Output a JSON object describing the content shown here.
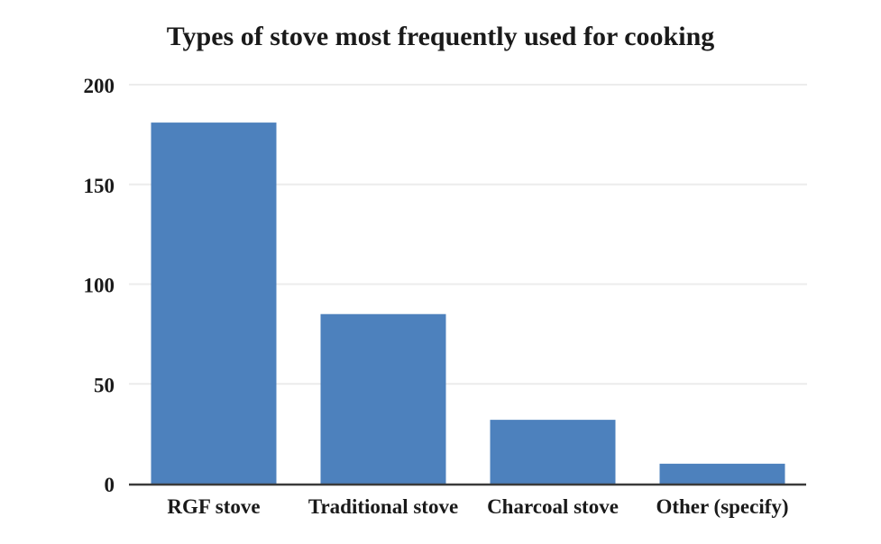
{
  "chart_data": {
    "type": "bar",
    "title": "Types of stove most frequently used for cooking",
    "categories": [
      "RGF stove",
      "Traditional stove",
      "Charcoal stove",
      "Other (specify)"
    ],
    "values": [
      181,
      85,
      32,
      10
    ],
    "xlabel": "",
    "ylabel": "",
    "ylim": [
      0,
      200
    ],
    "yticks": [
      0,
      50,
      100,
      150,
      200
    ],
    "grid": "horizontal",
    "legend_position": "none",
    "colors": {
      "bar": "#4d81bd",
      "gridline": "#ececec",
      "axis_line": "#3a3a3a",
      "text": "#1a1a1a",
      "background": "#ffffff"
    }
  }
}
